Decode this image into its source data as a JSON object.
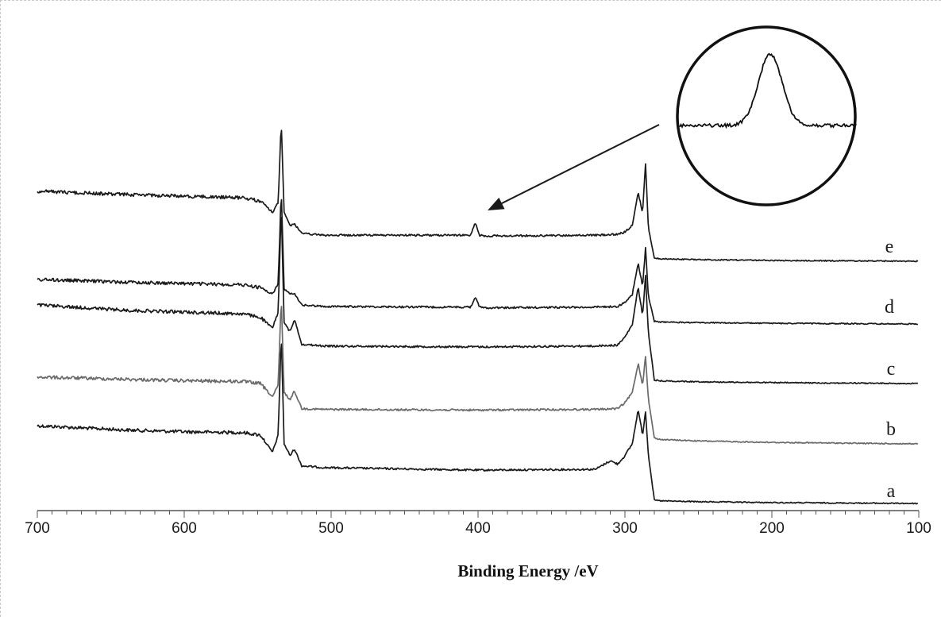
{
  "chart_data": {
    "type": "line",
    "title": "",
    "xlabel": "Binding Energy /eV",
    "ylabel": "",
    "xlim": [
      700,
      100
    ],
    "x_reversed": true,
    "xticks": [
      700,
      600,
      500,
      400,
      300,
      200,
      100
    ],
    "y_axis_visible": false,
    "grid": false,
    "series": [
      {
        "name": "a",
        "color": "#1a1a1a",
        "x": [
          700,
          640,
          600,
          560,
          548,
          540,
          536,
          534,
          532,
          528,
          525,
          520,
          505,
          400,
          320,
          310,
          305,
          300,
          295,
          291,
          288,
          286,
          284,
          280,
          276,
          250,
          200,
          100
        ],
        "y": [
          0.455,
          0.43,
          0.42,
          0.415,
          0.4,
          0.3,
          0.4,
          1.0,
          0.35,
          0.28,
          0.32,
          0.22,
          0.21,
          0.195,
          0.2,
          0.25,
          0.23,
          0.28,
          0.35,
          0.55,
          0.4,
          0.54,
          0.28,
          0.02,
          0.015,
          0.01,
          0.005,
          0.0
        ]
      },
      {
        "name": "b",
        "color": "#6a6a6a",
        "x": [
          700,
          640,
          600,
          560,
          548,
          540,
          536,
          534,
          532,
          528,
          525,
          520,
          505,
          400,
          320,
          305,
          300,
          295,
          291,
          288,
          286,
          284,
          280,
          276,
          250,
          200,
          100
        ],
        "y": [
          0.455,
          0.44,
          0.43,
          0.425,
          0.41,
          0.32,
          0.4,
          1.0,
          0.35,
          0.3,
          0.36,
          0.24,
          0.235,
          0.23,
          0.235,
          0.24,
          0.28,
          0.35,
          0.55,
          0.4,
          0.6,
          0.3,
          0.04,
          0.03,
          0.02,
          0.01,
          0.0
        ]
      },
      {
        "name": "c",
        "color": "#1a1a1a",
        "x": [
          700,
          640,
          600,
          560,
          548,
          540,
          536,
          534,
          532,
          528,
          525,
          520,
          505,
          400,
          320,
          305,
          300,
          295,
          291,
          288,
          286,
          284,
          280,
          276,
          250,
          200,
          100
        ],
        "y": [
          0.44,
          0.41,
          0.4,
          0.39,
          0.37,
          0.31,
          0.4,
          1.0,
          0.34,
          0.29,
          0.36,
          0.22,
          0.21,
          0.205,
          0.21,
          0.215,
          0.26,
          0.33,
          0.54,
          0.38,
          0.6,
          0.28,
          0.02,
          0.015,
          0.01,
          0.005,
          0.0
        ]
      },
      {
        "name": "d",
        "color": "#1a1a1a",
        "x": [
          700,
          640,
          600,
          560,
          548,
          540,
          536,
          534,
          532,
          528,
          525,
          520,
          505,
          420,
          405,
          402,
          399,
          395,
          320,
          305,
          300,
          295,
          291,
          288,
          286,
          284,
          280,
          276,
          250,
          200,
          100
        ],
        "y": [
          0.33,
          0.31,
          0.3,
          0.29,
          0.27,
          0.22,
          0.3,
          1.0,
          0.26,
          0.22,
          0.23,
          0.14,
          0.13,
          0.125,
          0.125,
          0.2,
          0.125,
          0.12,
          0.125,
          0.13,
          0.16,
          0.22,
          0.45,
          0.28,
          0.56,
          0.2,
          0.02,
          0.015,
          0.01,
          0.005,
          0.0
        ]
      },
      {
        "name": "e",
        "color": "#1a1a1a",
        "x": [
          700,
          640,
          600,
          560,
          548,
          540,
          536,
          534,
          532,
          528,
          525,
          520,
          505,
          420,
          405,
          402,
          399,
          395,
          320,
          305,
          300,
          295,
          291,
          288,
          286,
          284,
          280,
          276,
          250,
          200,
          100
        ],
        "y": [
          0.43,
          0.41,
          0.4,
          0.39,
          0.37,
          0.3,
          0.36,
          0.86,
          0.3,
          0.22,
          0.23,
          0.17,
          0.16,
          0.16,
          0.16,
          0.24,
          0.16,
          0.155,
          0.16,
          0.165,
          0.18,
          0.22,
          0.42,
          0.3,
          0.6,
          0.2,
          0.02,
          0.015,
          0.01,
          0.005,
          0.0
        ]
      }
    ],
    "inset": {
      "shape": "circle",
      "content": "magnified N 1s peak of series e near 400 eV",
      "arrow_target_x": 400
    }
  }
}
